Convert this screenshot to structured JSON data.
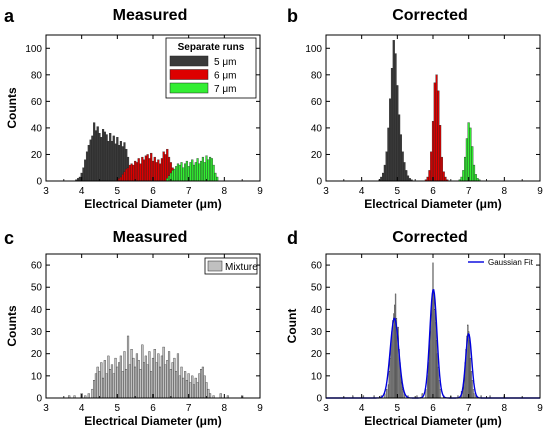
{
  "chart_data": [
    {
      "panel_letter": "a",
      "type": "bar",
      "title": "Measured",
      "xlabel": "Electrical Diameter (μm)",
      "ylabel": "Counts",
      "xlim": [
        3,
        9
      ],
      "ylim": [
        0,
        110
      ],
      "xticks": [
        "3",
        "4",
        "5",
        "6",
        "7",
        "8",
        "9"
      ],
      "yticks": [
        "0",
        "20",
        "40",
        "60",
        "80",
        "100"
      ],
      "legend": {
        "title": "Separate runs",
        "placement": "top-right",
        "entries": [
          {
            "label": "5 μm",
            "color": "#3a3a3a"
          },
          {
            "label": "6 μm",
            "color": "#dd0000"
          },
          {
            "label": "7 μm",
            "color": "#33ee33"
          }
        ]
      },
      "bin_width": 0.05,
      "series": [
        {
          "name": "5 μm",
          "color": "#3a3a3a",
          "x": [
            3.85,
            3.9,
            3.95,
            4.0,
            4.05,
            4.1,
            4.15,
            4.2,
            4.25,
            4.3,
            4.35,
            4.4,
            4.45,
            4.5,
            4.55,
            4.6,
            4.65,
            4.7,
            4.75,
            4.8,
            4.85,
            4.9,
            4.95,
            5.0,
            5.05,
            5.1,
            5.15,
            5.2,
            5.25,
            5.3,
            5.35,
            5.4
          ],
          "y": [
            1,
            2,
            3,
            6,
            10,
            16,
            22,
            27,
            31,
            34,
            44,
            38,
            41,
            36,
            33,
            39,
            37,
            35,
            30,
            36,
            30,
            34,
            28,
            33,
            27,
            30,
            26,
            29,
            24,
            18,
            10,
            5
          ]
        },
        {
          "name": "6 μm",
          "color": "#dd0000",
          "x": [
            5.0,
            5.05,
            5.1,
            5.15,
            5.2,
            5.25,
            5.3,
            5.35,
            5.4,
            5.45,
            5.5,
            5.55,
            5.6,
            5.65,
            5.7,
            5.75,
            5.8,
            5.85,
            5.9,
            5.95,
            6.0,
            6.05,
            6.1,
            6.15,
            6.2,
            6.25,
            6.3,
            6.35,
            6.4,
            6.45,
            6.5,
            6.55,
            6.6,
            6.65,
            6.7,
            6.75
          ],
          "y": [
            1,
            2,
            3,
            5,
            7,
            9,
            10,
            12,
            13,
            12,
            15,
            14,
            17,
            13,
            18,
            16,
            19,
            20,
            17,
            21,
            15,
            18,
            14,
            16,
            13,
            17,
            22,
            20,
            24,
            18,
            14,
            10,
            7,
            4,
            3,
            1
          ]
        },
        {
          "name": "7 μm",
          "color": "#33ee33",
          "x": [
            6.4,
            6.45,
            6.5,
            6.55,
            6.6,
            6.65,
            6.7,
            6.75,
            6.8,
            6.85,
            6.9,
            6.95,
            7.0,
            7.05,
            7.1,
            7.15,
            7.2,
            7.25,
            7.3,
            7.35,
            7.4,
            7.45,
            7.5,
            7.55,
            7.6,
            7.65,
            7.7,
            7.75,
            7.8
          ],
          "y": [
            2,
            4,
            6,
            8,
            9,
            11,
            13,
            12,
            14,
            10,
            13,
            15,
            11,
            14,
            16,
            12,
            14,
            17,
            13,
            15,
            18,
            14,
            19,
            16,
            18,
            17,
            12,
            6,
            3
          ]
        }
      ]
    },
    {
      "panel_letter": "b",
      "type": "bar",
      "title": "Corrected",
      "xlabel": "Electrical Diameter (μm)",
      "ylabel": "",
      "xlim": [
        3,
        9
      ],
      "ylim": [
        0,
        110
      ],
      "xticks": [
        "3",
        "4",
        "5",
        "6",
        "7",
        "8",
        "9"
      ],
      "yticks": [
        "0",
        "20",
        "40",
        "60",
        "80",
        "100"
      ],
      "bin_width": 0.05,
      "series": [
        {
          "color": "#3a3a3a",
          "x": [
            4.5,
            4.55,
            4.6,
            4.65,
            4.7,
            4.75,
            4.8,
            4.85,
            4.9,
            4.95,
            5.0,
            5.05,
            5.1,
            5.15,
            5.2,
            5.25,
            5.3,
            5.35,
            5.4
          ],
          "y": [
            1,
            3,
            6,
            12,
            22,
            40,
            62,
            85,
            106,
            96,
            72,
            50,
            35,
            22,
            14,
            8,
            4,
            2,
            1
          ]
        },
        {
          "color": "#dd0000",
          "x": [
            5.8,
            5.85,
            5.9,
            5.95,
            6.0,
            6.05,
            6.1,
            6.15,
            6.2,
            6.25,
            6.3,
            6.35,
            6.4
          ],
          "y": [
            1,
            3,
            8,
            22,
            45,
            74,
            80,
            68,
            42,
            18,
            7,
            3,
            1
          ]
        },
        {
          "color": "#33ee33",
          "x": [
            6.75,
            6.8,
            6.85,
            6.9,
            6.95,
            7.0,
            7.05,
            7.1,
            7.15,
            7.2,
            7.25,
            7.3
          ],
          "y": [
            1,
            3,
            8,
            18,
            32,
            44,
            40,
            26,
            12,
            5,
            2,
            1
          ]
        }
      ]
    },
    {
      "panel_letter": "c",
      "type": "bar",
      "title": "Measured",
      "xlabel": "Electrical Diameter (μm)",
      "ylabel": "Counts",
      "xlim": [
        3,
        9
      ],
      "ylim": [
        0,
        65
      ],
      "xticks": [
        "3",
        "4",
        "5",
        "6",
        "7",
        "8",
        "9"
      ],
      "yticks": [
        "0",
        "10",
        "20",
        "30",
        "40",
        "50",
        "60"
      ],
      "legend": {
        "placement": "top-right",
        "entries": [
          {
            "label": "Mixture",
            "color": "#c0c0c0"
          }
        ]
      },
      "bin_width": 0.05,
      "series": [
        {
          "name": "Mixture",
          "color": "#c0c0c0",
          "x": [
            3.65,
            3.8,
            4.0,
            4.1,
            4.2,
            4.3,
            4.35,
            4.4,
            4.45,
            4.5,
            4.55,
            4.6,
            4.65,
            4.7,
            4.75,
            4.8,
            4.85,
            4.9,
            4.95,
            5.0,
            5.05,
            5.1,
            5.15,
            5.2,
            5.25,
            5.3,
            5.35,
            5.4,
            5.45,
            5.5,
            5.55,
            5.6,
            5.65,
            5.7,
            5.75,
            5.8,
            5.85,
            5.9,
            5.95,
            6.0,
            6.05,
            6.1,
            6.15,
            6.2,
            6.25,
            6.3,
            6.35,
            6.4,
            6.45,
            6.5,
            6.55,
            6.6,
            6.65,
            6.7,
            6.75,
            6.8,
            6.85,
            6.9,
            6.95,
            7.0,
            7.05,
            7.1,
            7.15,
            7.2,
            7.25,
            7.3,
            7.35,
            7.4,
            7.45,
            7.5,
            7.55,
            7.6,
            7.7,
            7.9,
            8.1,
            8.5
          ],
          "y": [
            1,
            1,
            2,
            1,
            2,
            4,
            8,
            11,
            14,
            12,
            16,
            9,
            17,
            11,
            19,
            13,
            15,
            11,
            18,
            14,
            16,
            19,
            12,
            21,
            13,
            28,
            15,
            22,
            18,
            14,
            20,
            17,
            13,
            24,
            16,
            19,
            15,
            21,
            12,
            18,
            22,
            16,
            20,
            14,
            19,
            23,
            15,
            17,
            21,
            13,
            16,
            18,
            12,
            20,
            10,
            14,
            9,
            12,
            8,
            11,
            7,
            10,
            6,
            9,
            7,
            11,
            13,
            14,
            10,
            7,
            4,
            2,
            1,
            2,
            1,
            1
          ]
        }
      ]
    },
    {
      "panel_letter": "d",
      "type": "bar",
      "title": "Corrected",
      "xlabel": "Electrical Diameter (μm)",
      "ylabel": "Count",
      "xlim": [
        3,
        9
      ],
      "ylim": [
        0,
        65
      ],
      "xticks": [
        "3",
        "4",
        "5",
        "6",
        "7",
        "8",
        "9"
      ],
      "yticks": [
        "0",
        "10",
        "20",
        "30",
        "40",
        "50",
        "60"
      ],
      "legend": {
        "placement": "top-right",
        "entries": [
          {
            "label": "Gaussian Fit",
            "color": "#0000dd"
          }
        ]
      },
      "bin_width": 0.025,
      "series": [
        {
          "color": "#b0b0b0",
          "x": [
            3.75,
            4.05,
            4.35,
            4.55,
            4.65,
            4.7,
            4.75,
            4.775,
            4.8,
            4.825,
            4.85,
            4.875,
            4.9,
            4.925,
            4.95,
            4.975,
            5.0,
            5.025,
            5.05,
            5.075,
            5.1,
            5.125,
            5.15,
            5.2,
            5.3,
            5.55,
            5.7,
            5.8,
            5.85,
            5.875,
            5.9,
            5.925,
            5.95,
            5.975,
            6.0,
            6.025,
            6.05,
            6.075,
            6.1,
            6.125,
            6.15,
            6.175,
            6.2,
            6.3,
            6.5,
            6.7,
            6.8,
            6.85,
            6.875,
            6.9,
            6.925,
            6.95,
            6.975,
            7.0,
            7.025,
            7.05,
            7.075,
            7.1,
            7.125,
            7.15,
            7.2,
            7.35,
            7.6,
            8.0
          ],
          "y": [
            1,
            1,
            1,
            1,
            2,
            4,
            6,
            12,
            18,
            24,
            30,
            35,
            38,
            42,
            47,
            36,
            28,
            32,
            22,
            16,
            10,
            7,
            4,
            2,
            1,
            1,
            2,
            4,
            10,
            16,
            24,
            30,
            38,
            45,
            61,
            48,
            40,
            34,
            26,
            20,
            14,
            8,
            4,
            1,
            1,
            1,
            3,
            6,
            10,
            16,
            22,
            28,
            33,
            30,
            26,
            18,
            12,
            8,
            4,
            2,
            1,
            1,
            1,
            1
          ]
        },
        {
          "name": "Gaussian Fit",
          "color": "#0000dd",
          "kind": "gaussian_fit",
          "peaks": [
            {
              "center": 4.92,
              "sigma": 0.12,
              "amplitude": 36
            },
            {
              "center": 6.01,
              "sigma": 0.1,
              "amplitude": 49
            },
            {
              "center": 7.0,
              "sigma": 0.085,
              "amplitude": 29
            }
          ]
        }
      ]
    }
  ]
}
